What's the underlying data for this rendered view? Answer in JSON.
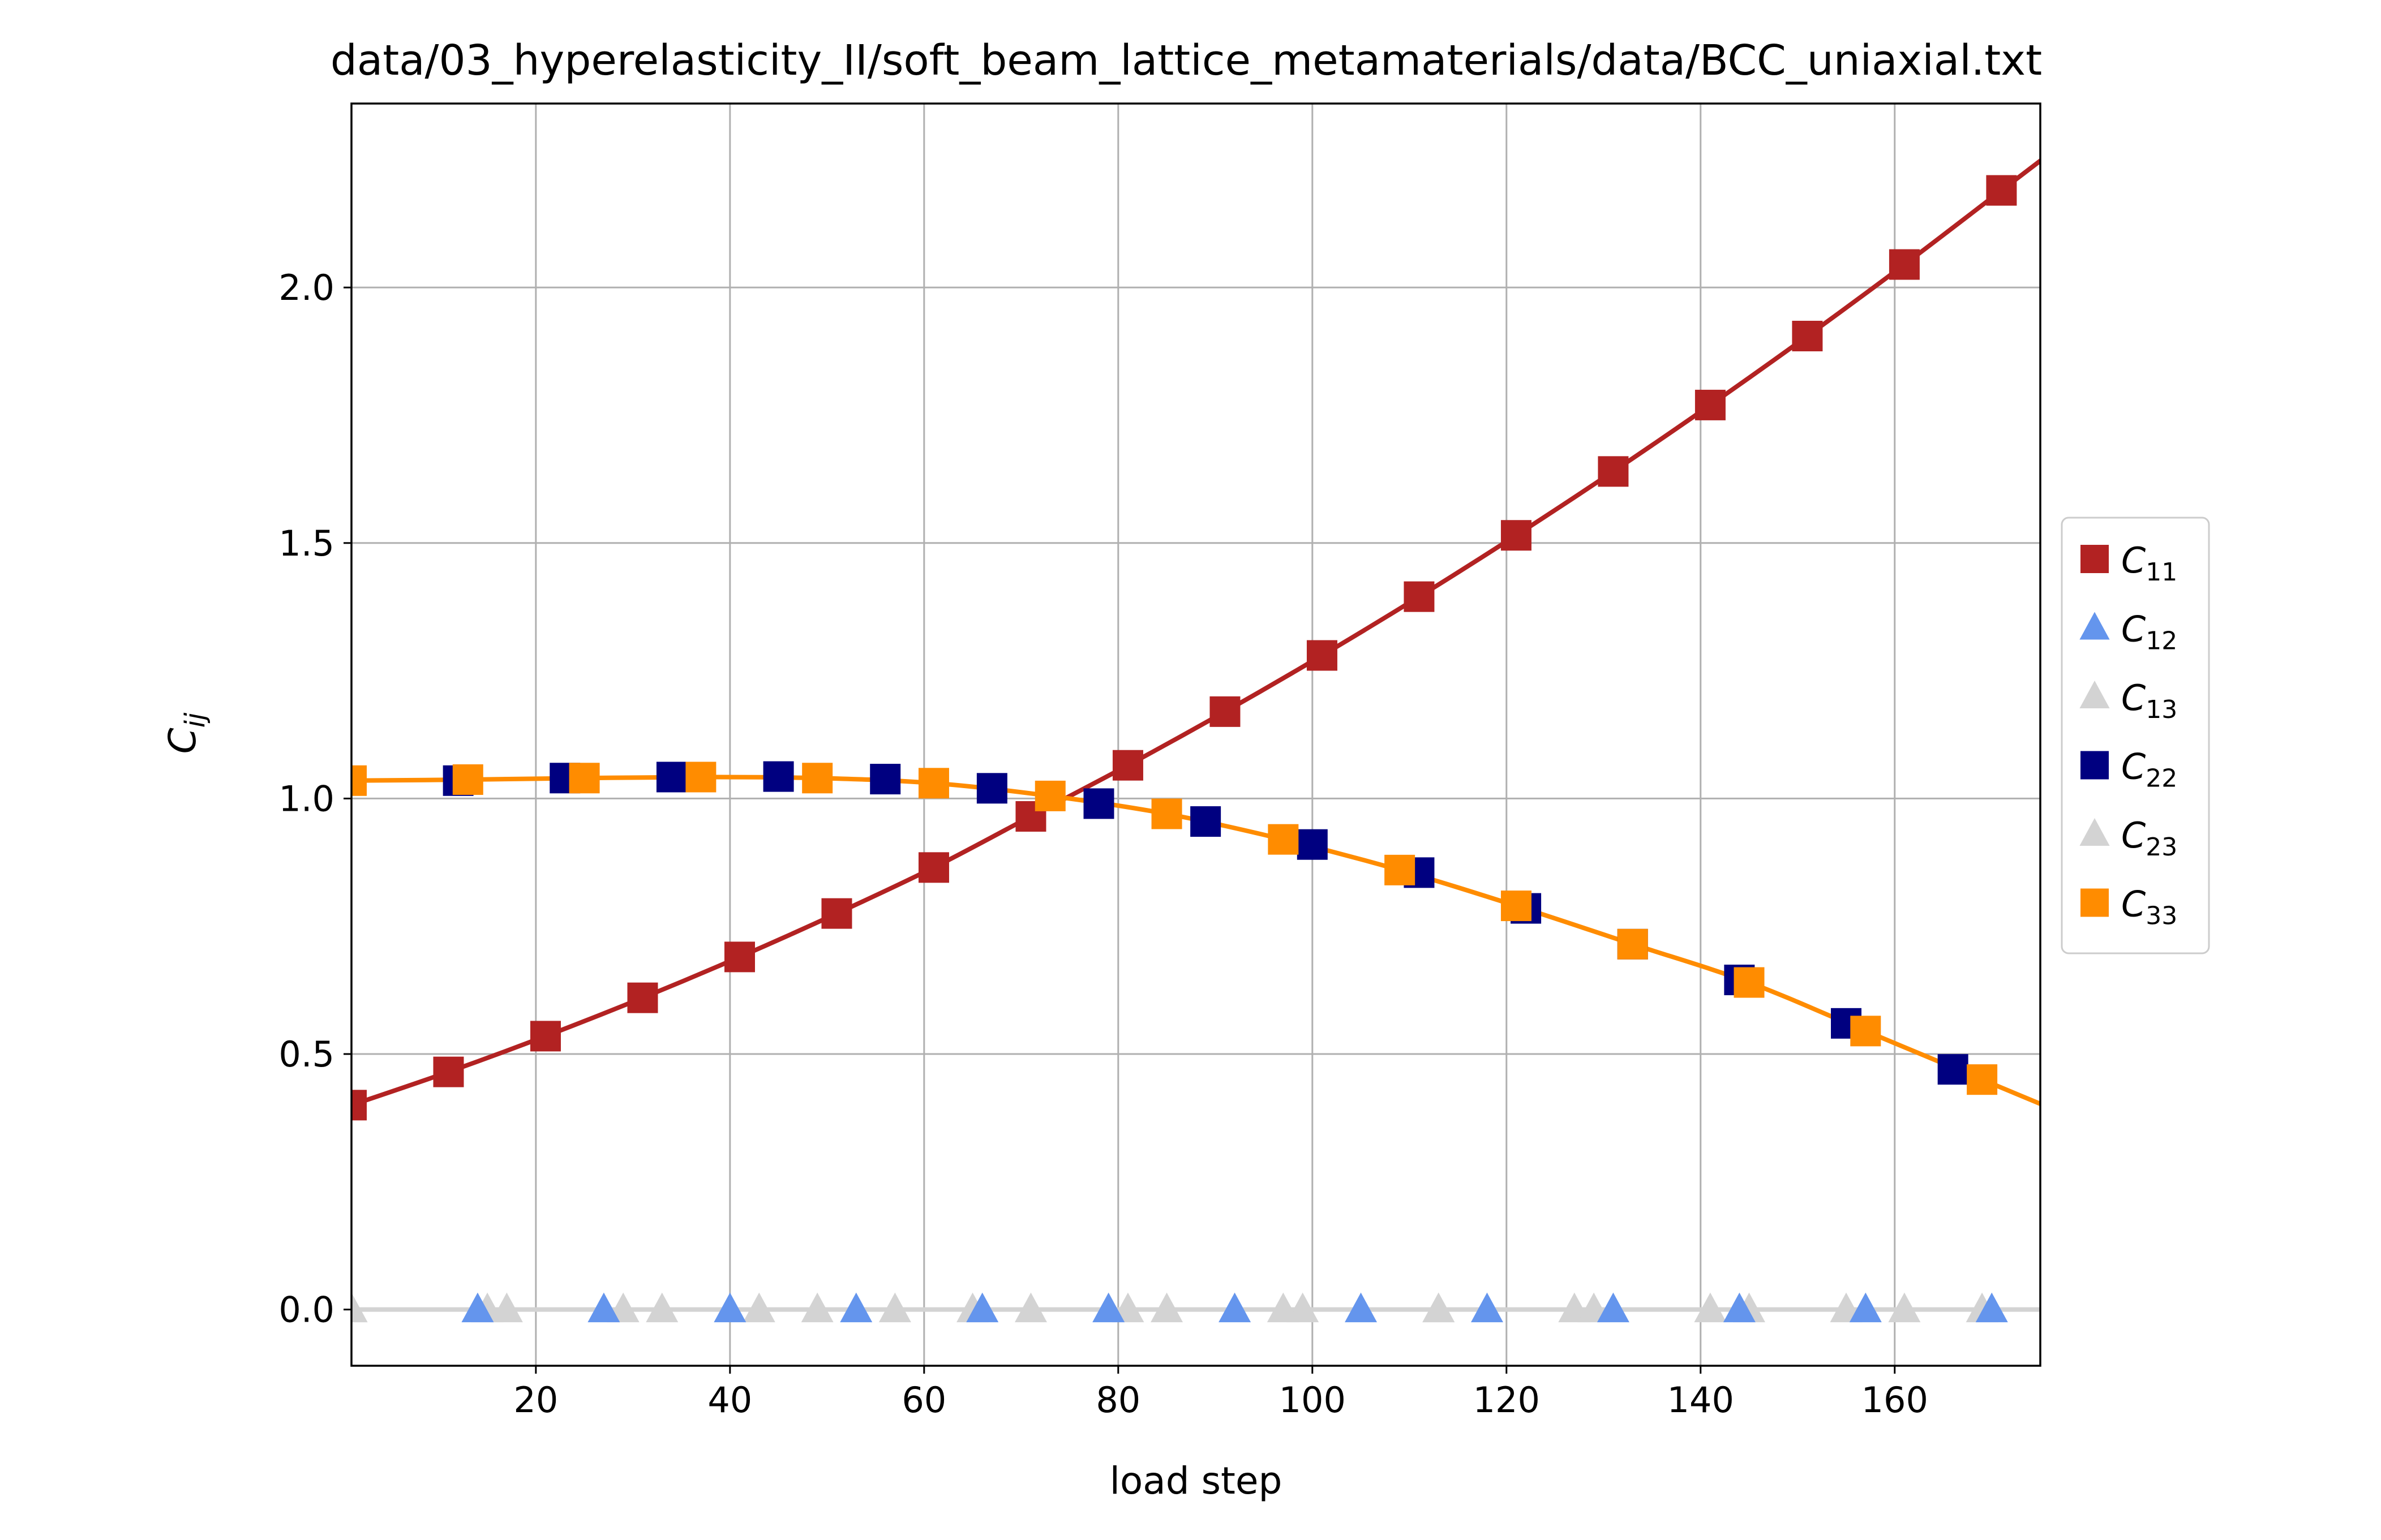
{
  "chart_data": {
    "type": "line",
    "title": "data/03_hyperelasticity_II/soft_beam_lattice_metamaterials/data/BCC_uniaxial.txt",
    "xlabel": "load step",
    "ylabel": "C_ij",
    "xlim": [
      1,
      175
    ],
    "ylim": [
      -0.11,
      2.36
    ],
    "xticks": [
      20,
      40,
      60,
      80,
      100,
      120,
      140,
      160
    ],
    "yticks": [
      0.0,
      0.5,
      1.0,
      1.5,
      2.0
    ],
    "xtick_labels": [
      "20",
      "40",
      "60",
      "80",
      "100",
      "120",
      "140",
      "160"
    ],
    "ytick_labels": [
      "0.0",
      "0.5",
      "1.0",
      "1.5",
      "2.0"
    ],
    "grid": true,
    "legend_position": "center-right, outside plot",
    "series": [
      {
        "name": "C_11",
        "label_base": "C",
        "label_sub": "11",
        "color": "#b22222",
        "marker": "square",
        "x": [
          1,
          11,
          21,
          31,
          41,
          51,
          61,
          71,
          81,
          91,
          101,
          111,
          121,
          131,
          141,
          151,
          161,
          171
        ],
        "values": [
          0.4,
          0.465,
          0.535,
          0.61,
          0.69,
          0.775,
          0.865,
          0.965,
          1.065,
          1.17,
          1.28,
          1.395,
          1.515,
          1.64,
          1.77,
          1.905,
          2.045,
          2.19
        ]
      },
      {
        "name": "C_12",
        "label_base": "C",
        "label_sub": "12",
        "color": "#6495ed",
        "marker": "triangle",
        "x": [
          14,
          27,
          40,
          53,
          66,
          79,
          92,
          105,
          118,
          131,
          144,
          157,
          170
        ],
        "values": [
          0,
          0,
          0,
          0,
          0,
          0,
          0,
          0,
          0,
          0,
          0,
          0,
          0
        ]
      },
      {
        "name": "C_13",
        "label_base": "C",
        "label_sub": "13",
        "color": "#d3d3d3",
        "marker": "triangle",
        "x": [
          1,
          15,
          29,
          43,
          57,
          71,
          85,
          99,
          113,
          127,
          141,
          155,
          169
        ],
        "values": [
          0,
          0,
          0,
          0,
          0,
          0,
          0,
          0,
          0,
          0,
          0,
          0,
          0
        ]
      },
      {
        "name": "C_22",
        "label_base": "C",
        "label_sub": "22",
        "color": "#000080",
        "marker": "square",
        "x": [
          12,
          23,
          34,
          45,
          56,
          67,
          78,
          89,
          100,
          111,
          122,
          133,
          144,
          155,
          166
        ],
        "values": [
          1.035,
          1.04,
          1.042,
          1.043,
          1.038,
          1.02,
          0.99,
          0.955,
          0.91,
          0.855,
          0.785,
          0.715,
          0.645,
          0.56,
          0.47
        ]
      },
      {
        "name": "C_23",
        "label_base": "C",
        "label_sub": "23",
        "color": "#d3d3d3",
        "marker": "triangle",
        "x": [
          1,
          17,
          33,
          49,
          65,
          81,
          97,
          113,
          129,
          145,
          161
        ],
        "values": [
          0,
          0,
          0,
          0,
          0,
          0,
          0,
          0,
          0,
          0,
          0
        ]
      },
      {
        "name": "C_33",
        "label_base": "C",
        "label_sub": "33",
        "color": "#ff8c00",
        "marker": "square",
        "x": [
          1,
          13,
          25,
          37,
          49,
          61,
          73,
          85,
          97,
          109,
          121,
          133,
          145,
          157,
          169
        ],
        "values": [
          1.035,
          1.037,
          1.04,
          1.042,
          1.04,
          1.03,
          1.005,
          0.97,
          0.92,
          0.86,
          0.79,
          0.715,
          0.64,
          0.545,
          0.45
        ]
      }
    ]
  }
}
